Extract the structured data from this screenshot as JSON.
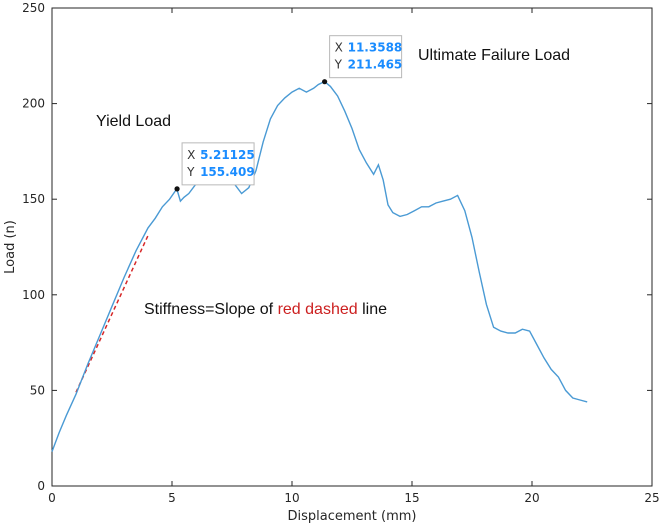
{
  "colors": {
    "line": "#4a9ad4",
    "dashed": "#d62728",
    "axis": "#262626",
    "datatip_value": "#1a8cff",
    "highlight_text": "#cc1f1f"
  },
  "chart_data": {
    "type": "line",
    "xlabel": "Displacement (mm)",
    "ylabel": "Load (n)",
    "xlim": [
      0,
      25
    ],
    "ylim": [
      0,
      250
    ],
    "xticks": [
      0,
      5,
      10,
      15,
      20,
      25
    ],
    "yticks": [
      0,
      50,
      100,
      150,
      200,
      250
    ],
    "grid": false,
    "series": [
      {
        "x": [
          0,
          0.3,
          0.6,
          1.0,
          1.5,
          2.0,
          2.5,
          3.0,
          3.5,
          4.0,
          4.3,
          4.6,
          4.9,
          5.2,
          5.35,
          5.5,
          5.7,
          6.0,
          6.4,
          6.8,
          7.2,
          7.6,
          7.9,
          8.2,
          8.5,
          8.8,
          9.1,
          9.4,
          9.7,
          10.0,
          10.3,
          10.6,
          10.9,
          11.1,
          11.36,
          11.6,
          11.9,
          12.2,
          12.5,
          12.8,
          13.1,
          13.4,
          13.6,
          13.8,
          14.0,
          14.2,
          14.5,
          14.8,
          15.1,
          15.4,
          15.7,
          16.0,
          16.3,
          16.6,
          16.9,
          17.2,
          17.5,
          17.8,
          18.1,
          18.4,
          18.7,
          19.0,
          19.3,
          19.6,
          19.9,
          20.2,
          20.5,
          20.8,
          21.1,
          21.4,
          21.7,
          22.0,
          22.3
        ],
        "y": [
          18,
          28,
          37,
          48,
          64,
          79,
          94,
          109,
          123,
          135,
          140,
          146,
          150,
          155.4,
          149,
          151,
          153,
          158,
          160,
          163,
          160,
          158,
          153,
          156,
          165,
          180,
          192,
          199,
          203,
          206,
          208,
          206,
          208,
          210,
          211.5,
          209,
          204,
          196,
          187,
          176,
          169,
          163,
          168,
          160,
          147,
          143,
          141,
          142,
          144,
          146,
          146,
          148,
          149,
          150,
          152,
          144,
          130,
          112,
          95,
          83,
          81,
          80,
          80,
          82,
          81,
          74,
          67,
          61,
          57,
          50,
          46,
          45,
          44
        ]
      }
    ],
    "reference_line": {
      "x": [
        1,
        4
      ],
      "y": [
        49,
        131
      ]
    },
    "datatips": [
      {
        "x": 5.21125,
        "y": 155.409,
        "x_label": "X",
        "y_label": "Y",
        "x_text": "5.21125",
        "y_text": "155.409"
      },
      {
        "x": 11.3588,
        "y": 211.465,
        "x_label": "X",
        "y_label": "Y",
        "x_text": "11.3588",
        "y_text": "211.465"
      }
    ],
    "annotations": {
      "yield": "Yield Load",
      "ultimate": "Ultimate Failure Load",
      "stiffness_prefix": "Stiffness=Slope of ",
      "stiffness_highlight": "red dashed",
      "stiffness_suffix": " line"
    }
  }
}
